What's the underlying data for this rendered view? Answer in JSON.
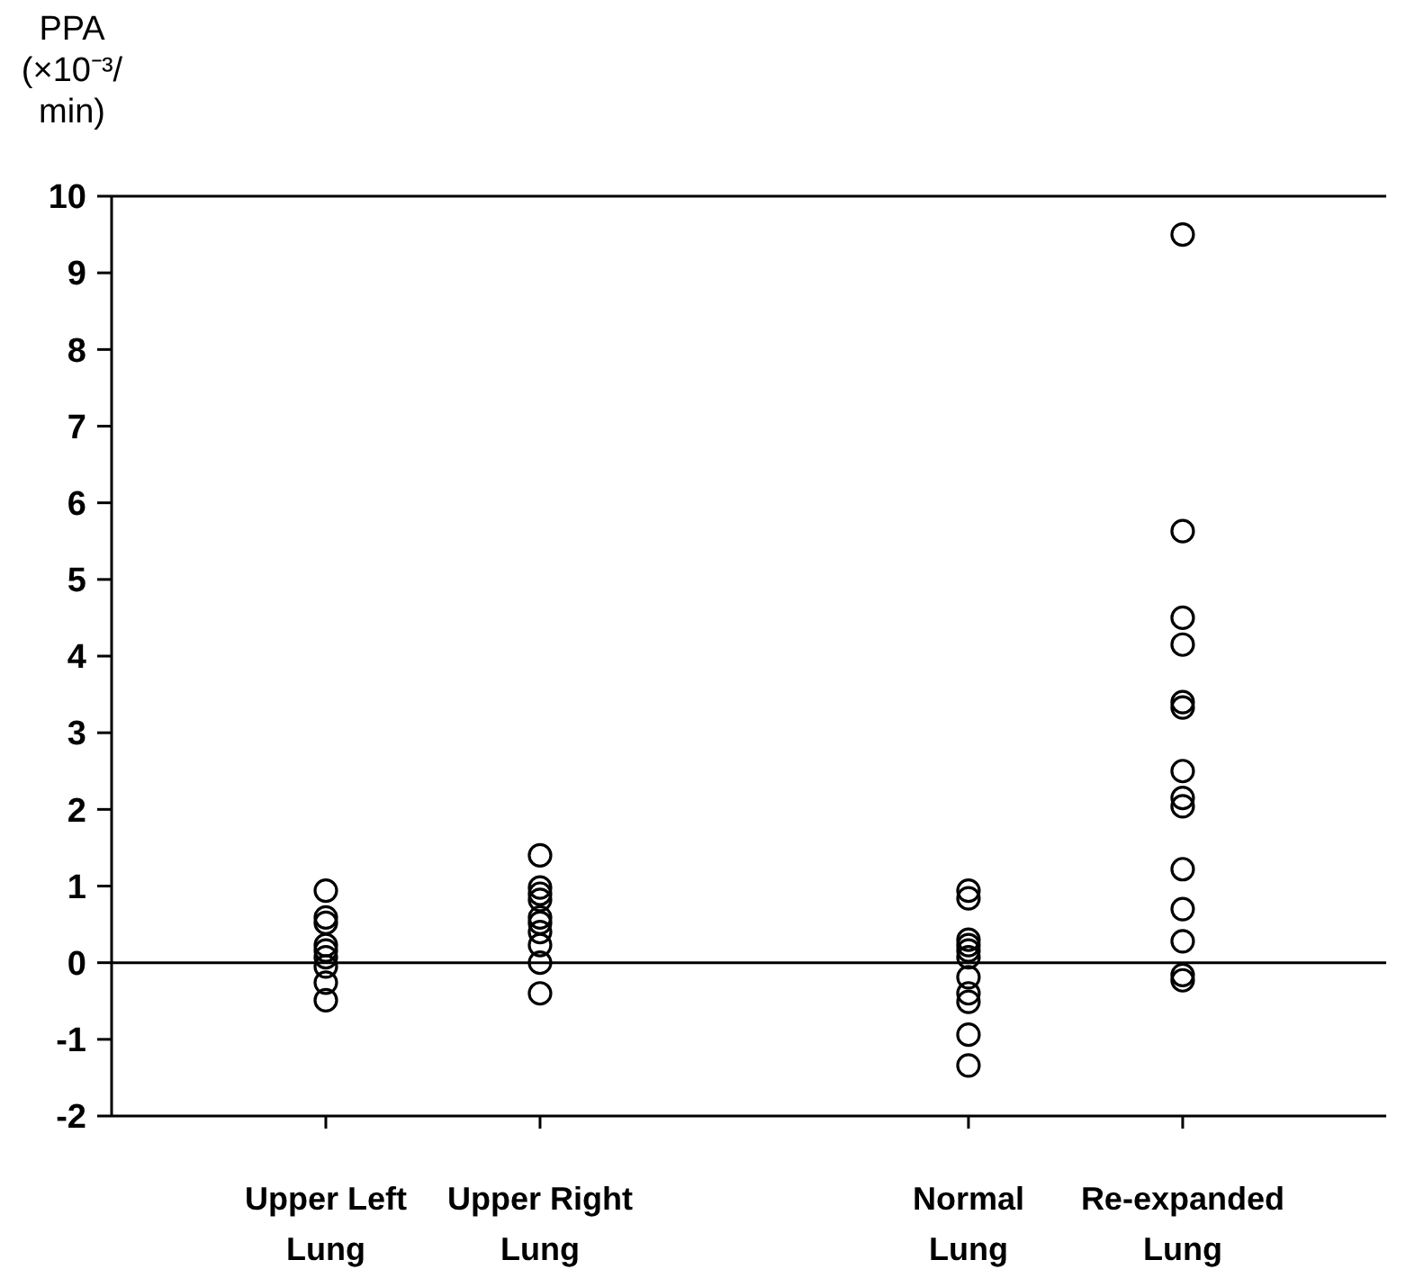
{
  "chart_data": {
    "type": "scatter",
    "ylabel": "PPA (×10⁻³/min)",
    "categories": [
      "Upper Left Lung",
      "Upper Right Lung",
      null,
      "Normal Lung",
      "Re-expanded Lung"
    ],
    "series": [
      {
        "color": "#000000",
        "x": [
          "Upper Left Lung",
          "Upper Left Lung",
          "Upper Left Lung",
          "Upper Left Lung",
          "Upper Left Lung",
          "Upper Left Lung",
          "Upper Left Lung",
          "Upper Left Lung",
          "Upper Left Lung"
        ],
        "values": [
          0.94,
          0.59,
          0.52,
          0.23,
          0.16,
          0.07,
          -0.05,
          -0.26,
          -0.49
        ]
      },
      {
        "color": "#000000",
        "x": [
          "Upper Right Lung",
          "Upper Right Lung",
          "Upper Right Lung",
          "Upper Right Lung",
          "Upper Right Lung",
          "Upper Right Lung",
          "Upper Right Lung",
          "Upper Right Lung",
          "Upper Right Lung",
          "Upper Right Lung"
        ],
        "values": [
          1.4,
          0.98,
          0.9,
          0.82,
          0.59,
          0.52,
          0.4,
          0.23,
          0,
          -0.4
        ]
      },
      {
        "color": "#000000",
        "x": [
          "Normal Lung",
          "Normal Lung",
          "Normal Lung",
          "Normal Lung",
          "Normal Lung",
          "Normal Lung",
          "Normal Lung",
          "Normal Lung",
          "Normal Lung",
          "Normal Lung",
          "Normal Lung"
        ],
        "values": [
          0.94,
          0.84,
          0.3,
          0.23,
          0.16,
          0.07,
          -0.19,
          -0.4,
          -0.51,
          -0.94,
          -1.34
        ]
      },
      {
        "color": "#000000",
        "x": [
          "Re-expanded Lung",
          "Re-expanded Lung",
          "Re-expanded Lung",
          "Re-expanded Lung",
          "Re-expanded Lung",
          "Re-expanded Lung",
          "Re-expanded Lung",
          "Re-expanded Lung",
          "Re-expanded Lung",
          "Re-expanded Lung",
          "Re-expanded Lung",
          "Re-expanded Lung",
          "Re-expanded Lung",
          "Re-expanded Lung"
        ],
        "values": [
          9.5,
          5.63,
          4.5,
          4.15,
          3.4,
          3.33,
          2.5,
          2.15,
          2.04,
          1.22,
          0.7,
          0.28,
          -0.16,
          -0.23
        ]
      }
    ],
    "ylim": [
      -2,
      10
    ],
    "yticks": [
      -2,
      -1,
      0,
      1,
      2,
      3,
      4,
      5,
      6,
      7,
      8,
      9,
      10
    ],
    "ref_lines": [
      {
        "axis": "y",
        "value": 0,
        "color": "#000000"
      }
    ],
    "marker": "circle",
    "grid": false
  }
}
